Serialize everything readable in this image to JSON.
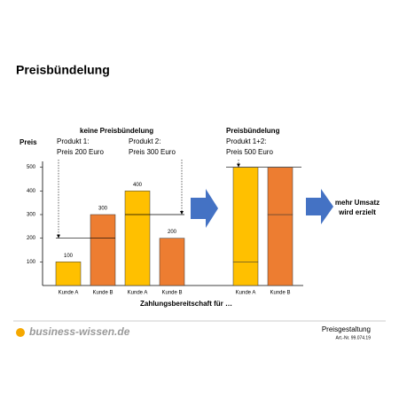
{
  "chart_data": {
    "type": "bar",
    "title": "Preisbündelung",
    "y_label": "Preis",
    "x_label": "Zahlungsbereitschaft für …",
    "ylim": [
      0,
      525
    ],
    "yticks": [
      100,
      200,
      300,
      400,
      500
    ],
    "groups": [
      {
        "heading": "keine Preisbündelung",
        "show_values": true,
        "offers": [
          {
            "text": [
              "Produkt 1:",
              "Preis 200 Euro"
            ],
            "price": 200,
            "bars": [
              {
                "category": "Kunde A",
                "values": [
                  100
                ],
                "color": "#FFC000"
              },
              {
                "category": "Kunde B",
                "values": [
                  300
                ],
                "color": "#ED7D31"
              }
            ]
          },
          {
            "text": [
              "Produkt 2:",
              "Preis 300 Euro"
            ],
            "price": 300,
            "bars": [
              {
                "category": "Kunde A",
                "values": [
                  400
                ],
                "color": "#FFC000"
              },
              {
                "category": "Kunde B",
                "values": [
                  200
                ],
                "color": "#ED7D31"
              }
            ]
          }
        ]
      },
      {
        "heading": "Preisbündelung",
        "show_values": false,
        "offers": [
          {
            "text": [
              "Produkt 1+2:",
              "Preis 500 Euro"
            ],
            "price": 500,
            "bars": [
              {
                "category": "Kunde A",
                "values": [
                  100,
                  400
                ],
                "color": "#FFC000"
              },
              {
                "category": "Kunde B",
                "values": [
                  300,
                  200
                ],
                "color": "#ED7D31"
              }
            ]
          }
        ]
      }
    ],
    "conclusion": [
      "mehr Umsatz",
      "wird erzielt"
    ]
  },
  "footer": {
    "brand": "business-wissen.de",
    "topic": "Preisgestaltung",
    "article": "Art.-Nr. 99.074.19"
  }
}
